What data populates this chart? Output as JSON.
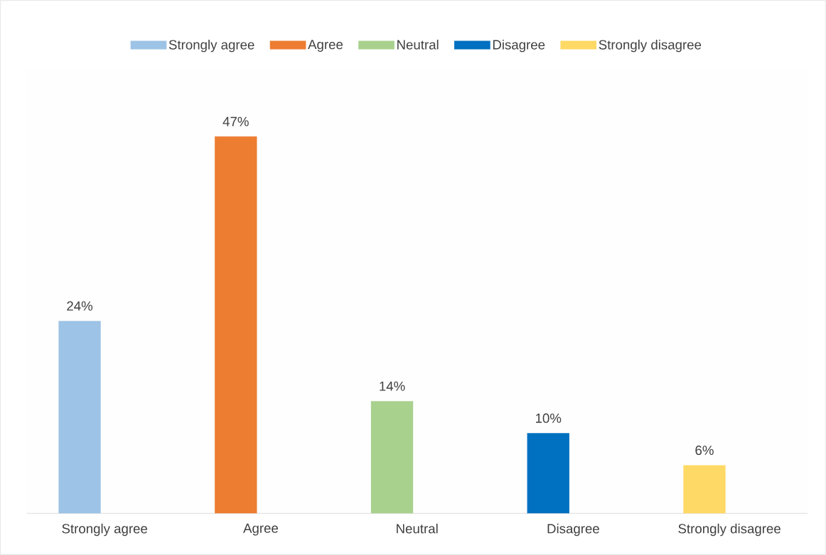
{
  "chart_data": {
    "type": "bar",
    "categories": [
      "Strongly agree",
      "Agree",
      "Neutral",
      "Disagree",
      "Strongly disagree"
    ],
    "series": [
      {
        "name": "Strongly agree",
        "color": "#9dc3e6",
        "values": [
          24,
          null,
          null,
          null,
          null
        ],
        "value_labels": [
          "24%",
          null,
          null,
          null,
          null
        ]
      },
      {
        "name": "Agree",
        "color": "#ed7d31",
        "values": [
          null,
          47,
          null,
          null,
          null
        ],
        "value_labels": [
          null,
          "47%",
          null,
          null,
          null
        ]
      },
      {
        "name": "Neutral",
        "color": "#a9d18e",
        "values": [
          null,
          null,
          14,
          null,
          null
        ],
        "value_labels": [
          null,
          null,
          "14%",
          null,
          null
        ]
      },
      {
        "name": "Disagree",
        "color": "#0070c0",
        "values": [
          null,
          null,
          null,
          10,
          null
        ],
        "value_labels": [
          null,
          null,
          null,
          "10%",
          null
        ]
      },
      {
        "name": "Strongly disagree",
        "color": "#ffd966",
        "values": [
          null,
          null,
          null,
          null,
          6
        ],
        "value_labels": [
          null,
          null,
          null,
          null,
          "6%"
        ]
      }
    ],
    "legend": "top",
    "grid": false
  }
}
